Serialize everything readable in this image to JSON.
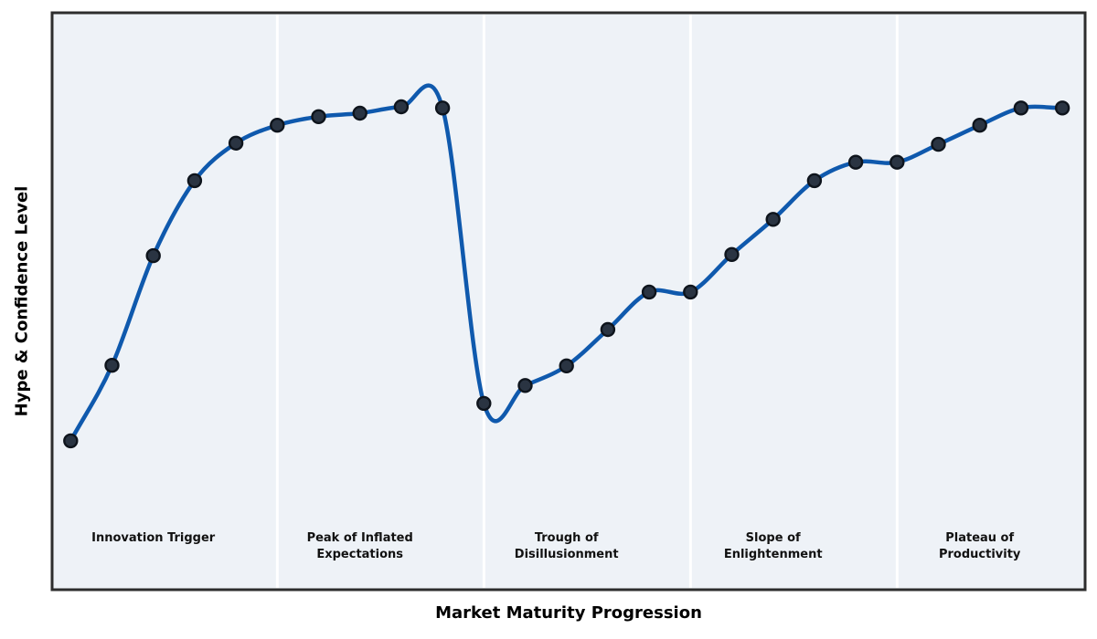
{
  "figure": {
    "background": "#ffffff",
    "plot_background": "#eef2f7",
    "border_color": "#2d2d2d",
    "divider_color": "#ffffff"
  },
  "chart_data": {
    "type": "line",
    "title": "",
    "xlabel": "Market Maturity Progression",
    "ylabel": "Hype & Confidence Level",
    "xlim": [
      -0.45,
      24.55
    ],
    "ylim": [
      0,
      100
    ],
    "grid": false,
    "legend": "none",
    "smoothing": "catmull-rom",
    "curve_color": "#0f59ad",
    "curve_width": 4.5,
    "marker_color": "#2a3442",
    "marker_edge_color": "#0e141c",
    "marker_radius": 7,
    "x": [
      0,
      1,
      2,
      3,
      4,
      5,
      6,
      7,
      8,
      9,
      10,
      11,
      12,
      13,
      14,
      15,
      16,
      17,
      18,
      19,
      20,
      21,
      22,
      23,
      24
    ],
    "y": [
      25.8,
      38.9,
      57.9,
      70.9,
      77.4,
      80.5,
      82.0,
      82.6,
      83.7,
      83.5,
      32.3,
      35.4,
      38.8,
      45.1,
      51.6,
      51.6,
      58.1,
      64.2,
      70.9,
      74.1,
      74.1,
      77.2,
      80.5,
      83.5,
      83.5
    ],
    "phase_boundaries_x": [
      5,
      10,
      15,
      20
    ],
    "phases": [
      {
        "label_lines": [
          "Innovation Trigger"
        ],
        "label_x": 2
      },
      {
        "label_lines": [
          "Peak of Inflated",
          "Expectations"
        ],
        "label_x": 7
      },
      {
        "label_lines": [
          "Trough of",
          "Disillusionment"
        ],
        "label_x": 12
      },
      {
        "label_lines": [
          "Slope of",
          "Enlightenment"
        ],
        "label_x": 17
      },
      {
        "label_lines": [
          "Plateau of",
          "Productivity"
        ],
        "label_x": 22
      }
    ]
  }
}
